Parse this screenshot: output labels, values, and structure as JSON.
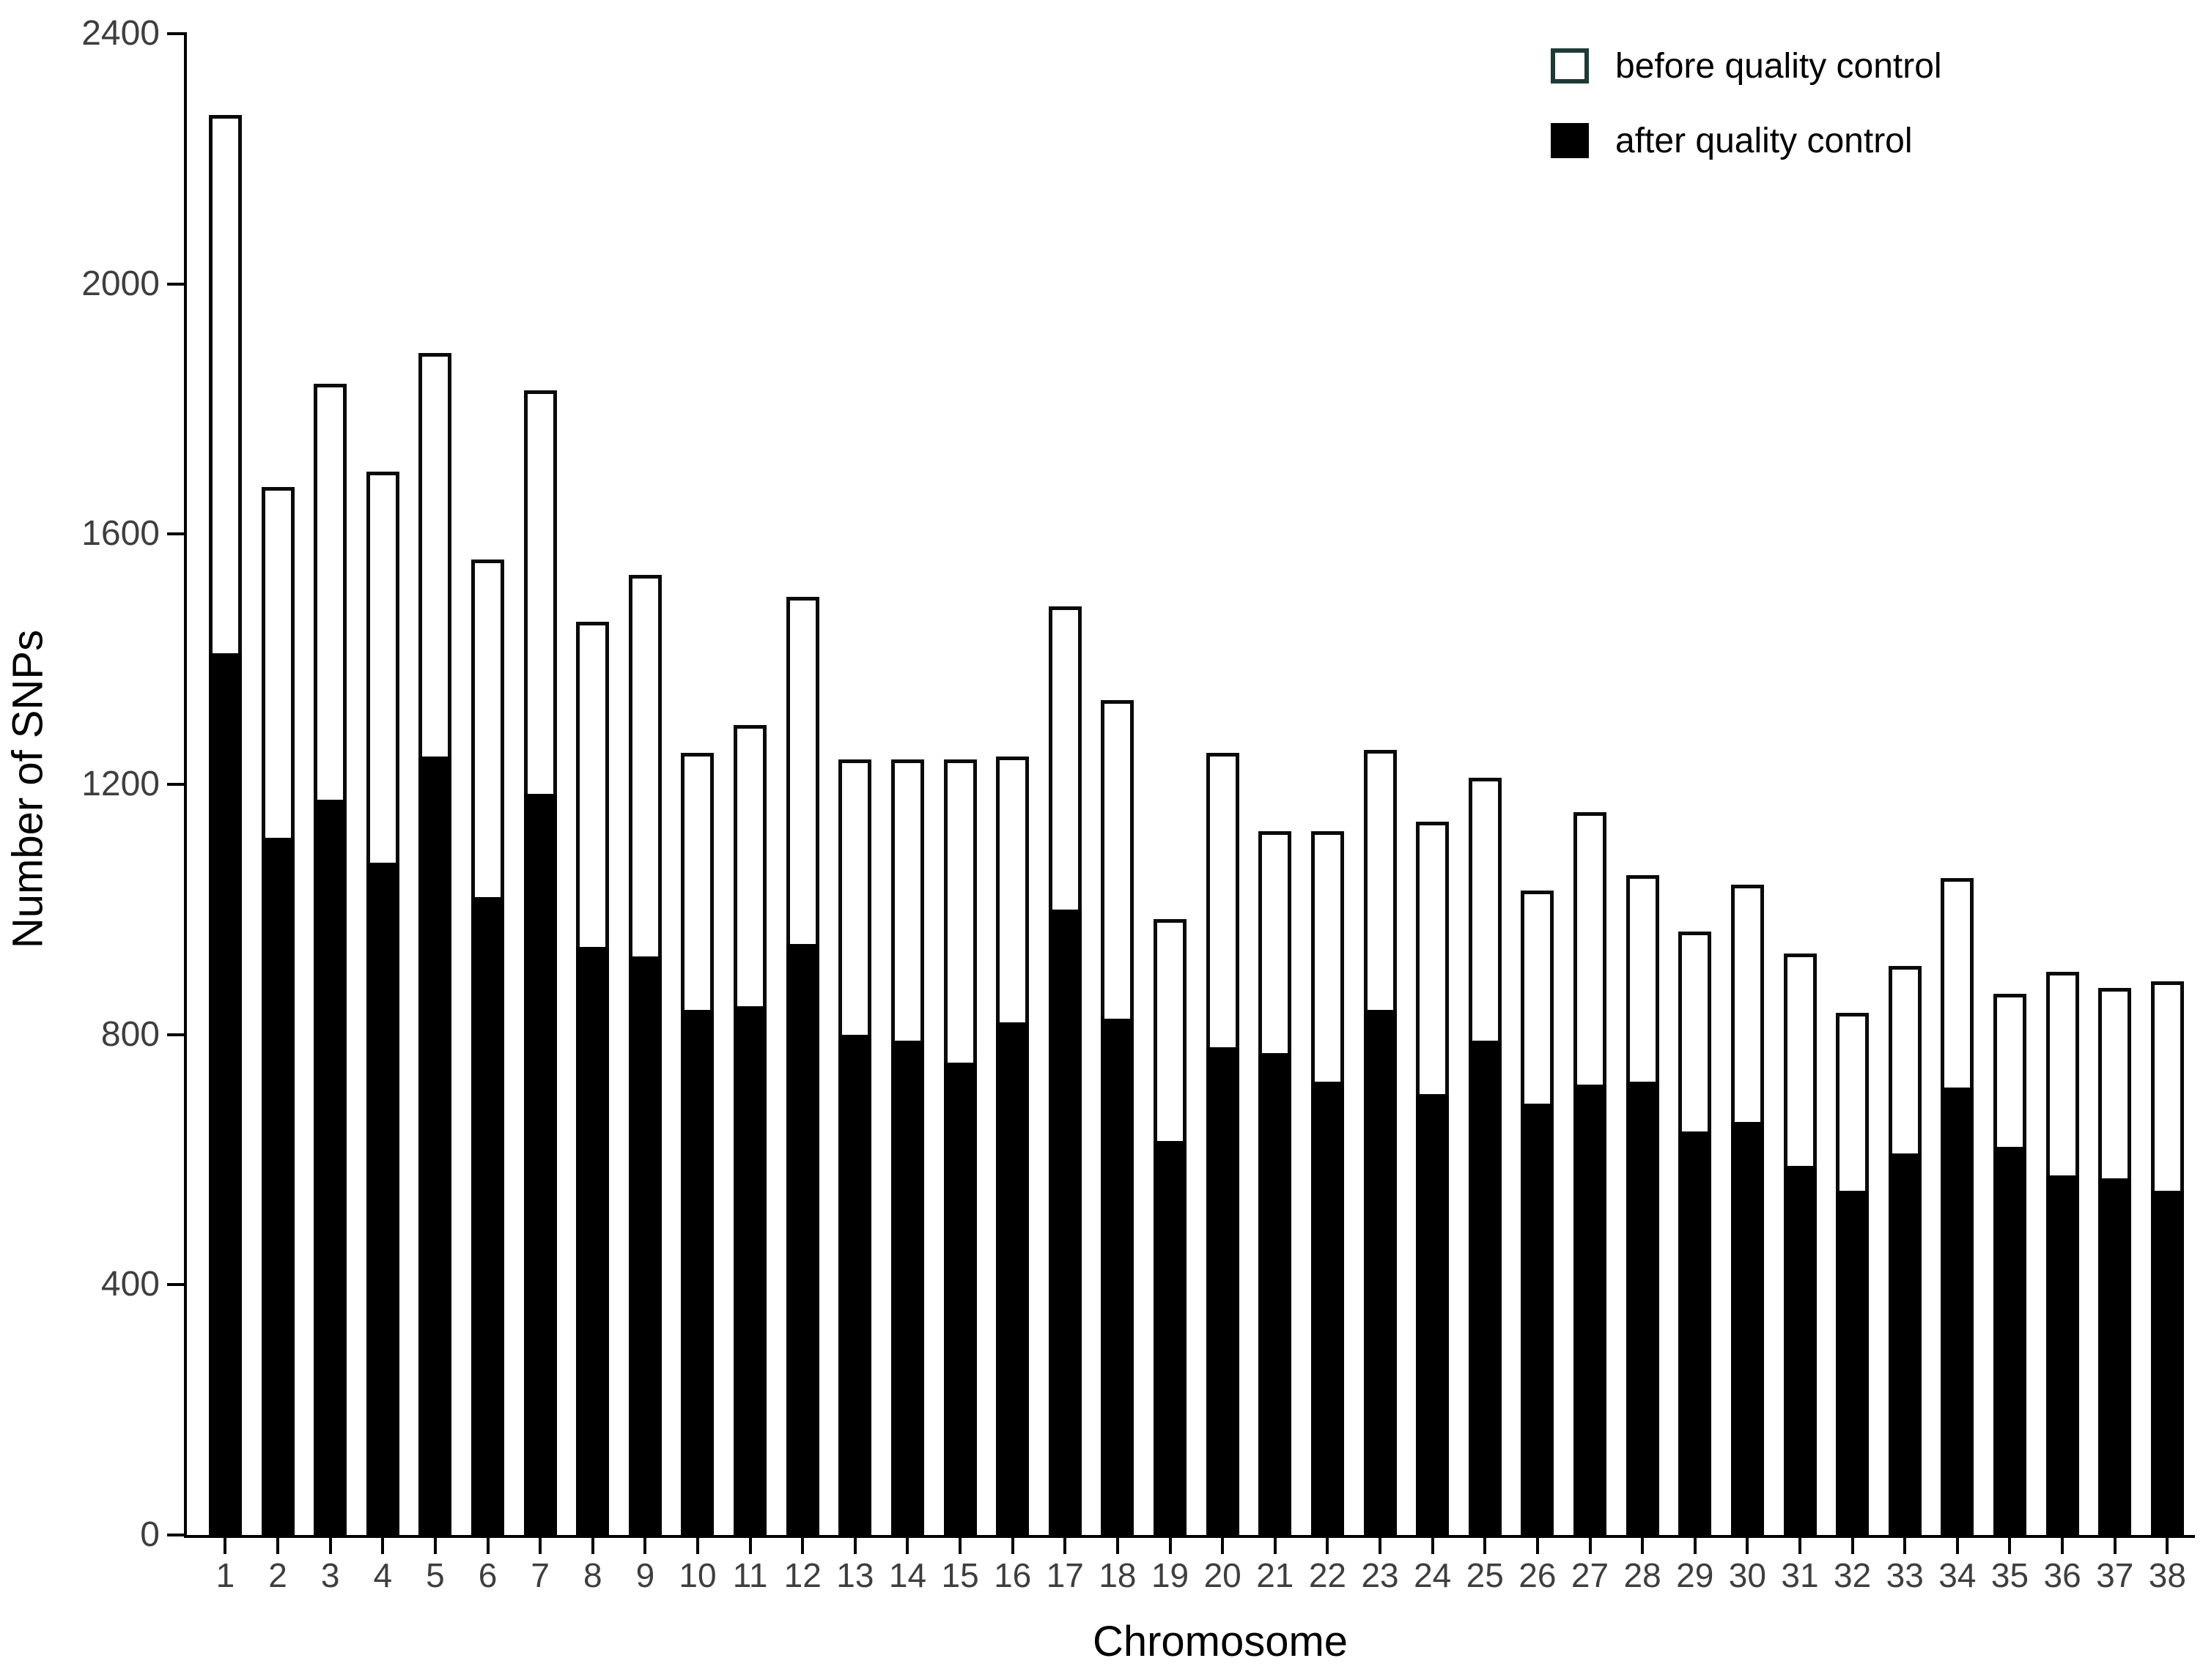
{
  "chart_data": {
    "type": "bar",
    "title": "",
    "xlabel": "Chromosome",
    "ylabel": "Number of SNPs",
    "ylim": [
      0,
      2400
    ],
    "yticks": [
      0,
      400,
      800,
      1200,
      1600,
      2000,
      2400
    ],
    "grid": false,
    "categories": [
      "1",
      "2",
      "3",
      "4",
      "5",
      "6",
      "7",
      "8",
      "9",
      "10",
      "11",
      "12",
      "13",
      "14",
      "15",
      "16",
      "17",
      "18",
      "19",
      "20",
      "21",
      "22",
      "23",
      "24",
      "25",
      "26",
      "27",
      "28",
      "29",
      "30",
      "31",
      "32",
      "33",
      "34",
      "35",
      "36",
      "37",
      "38"
    ],
    "series": [
      {
        "name": "before quality control",
        "style": "open",
        "values": [
          2270,
          1675,
          1840,
          1700,
          1890,
          1560,
          1830,
          1460,
          1535,
          1250,
          1295,
          1500,
          1240,
          1240,
          1240,
          1245,
          1485,
          1335,
          985,
          1250,
          1125,
          1125,
          1255,
          1140,
          1210,
          1030,
          1155,
          1055,
          965,
          1040,
          930,
          835,
          910,
          1050,
          865,
          900,
          875,
          885
        ]
      },
      {
        "name": "after quality control",
        "style": "filled",
        "values": [
          1410,
          1115,
          1175,
          1075,
          1245,
          1020,
          1185,
          940,
          925,
          840,
          845,
          945,
          800,
          790,
          755,
          820,
          1000,
          825,
          630,
          780,
          770,
          725,
          840,
          705,
          790,
          690,
          720,
          725,
          645,
          660,
          590,
          550,
          610,
          715,
          620,
          575,
          570,
          550
        ]
      }
    ],
    "legend": {
      "position": "top-right",
      "items": [
        {
          "label": "before quality control",
          "swatch": "open"
        },
        {
          "label": "after quality control",
          "swatch": "filled"
        }
      ]
    },
    "colors": {
      "bar_fill": "#000000",
      "bar_border": "#0a0a0a",
      "open_bar_fill": "#ffffff",
      "legend_open_border": "#1d3b36",
      "axis_line": "#000000",
      "tick_text": "#3e3e3e",
      "axis_title_text": "#000000",
      "background": "#ffffff"
    }
  }
}
